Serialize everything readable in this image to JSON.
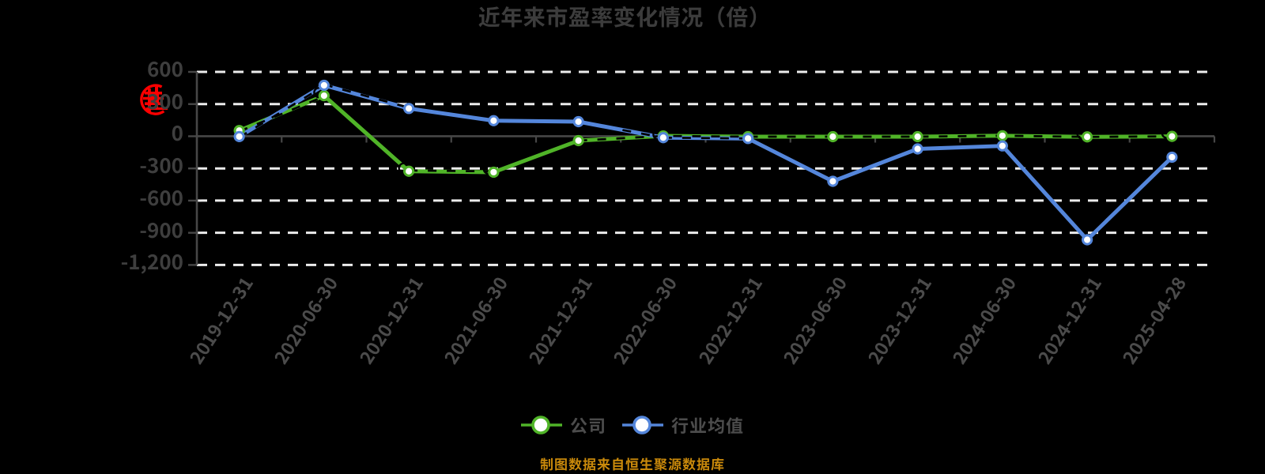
{
  "title": {
    "text": "近年来市盈率变化情况（倍）"
  },
  "watermark": {
    "type": "red-seal-stamp",
    "color": "#fe0000"
  },
  "footer": {
    "text": "制图数据来自恒生聚源数据库",
    "color": "#c9890b"
  },
  "legend": {
    "position": "bottom",
    "items": [
      {
        "label": "公司",
        "color": "#50b428"
      },
      {
        "label": "行业均值",
        "color": "#5486db"
      }
    ]
  },
  "chart_data": {
    "type": "line",
    "title": "近年来市盈率变化情况（倍）",
    "xlabel": "",
    "ylabel": "",
    "categories": [
      "2019-12-31",
      "2020-06-30",
      "2020-12-31",
      "2021-06-30",
      "2021-12-31",
      "2022-06-30",
      "2022-12-31",
      "2023-06-30",
      "2023-12-31",
      "2024-06-30",
      "2024-12-31",
      "2025-04-28"
    ],
    "series": [
      {
        "name": "公司",
        "color": "#50b428",
        "values": [
          53,
          378,
          -326,
          -335,
          -41,
          3,
          -4,
          -4,
          -4,
          5,
          -6,
          -1
        ]
      },
      {
        "name": "行业均值",
        "color": "#5486db",
        "values": [
          -3,
          475,
          259,
          145,
          136,
          -13,
          -21,
          -420,
          -118,
          -90,
          -965,
          -195
        ]
      }
    ],
    "ylim": [
      -1200,
      600
    ],
    "yticks": [
      600,
      300,
      0,
      -300,
      -600,
      -900,
      -1200
    ],
    "ytick_labels": [
      "600",
      "300",
      "0",
      "-300",
      "-600",
      "-900",
      "-1,200"
    ],
    "grid": "horizontal dashed white lines, solid gray zero line",
    "legend_position": "bottom",
    "marker": "circle, white fill, colored ring"
  },
  "style": {
    "background": "#000000",
    "grid_color": "#ececec",
    "axis_color": "#474747",
    "title_color": "#3c3c3c",
    "ytick_color": "#3e3e3e",
    "xtick_color": "#4b4b4b",
    "legend_text_color": "#4c4c4c"
  }
}
